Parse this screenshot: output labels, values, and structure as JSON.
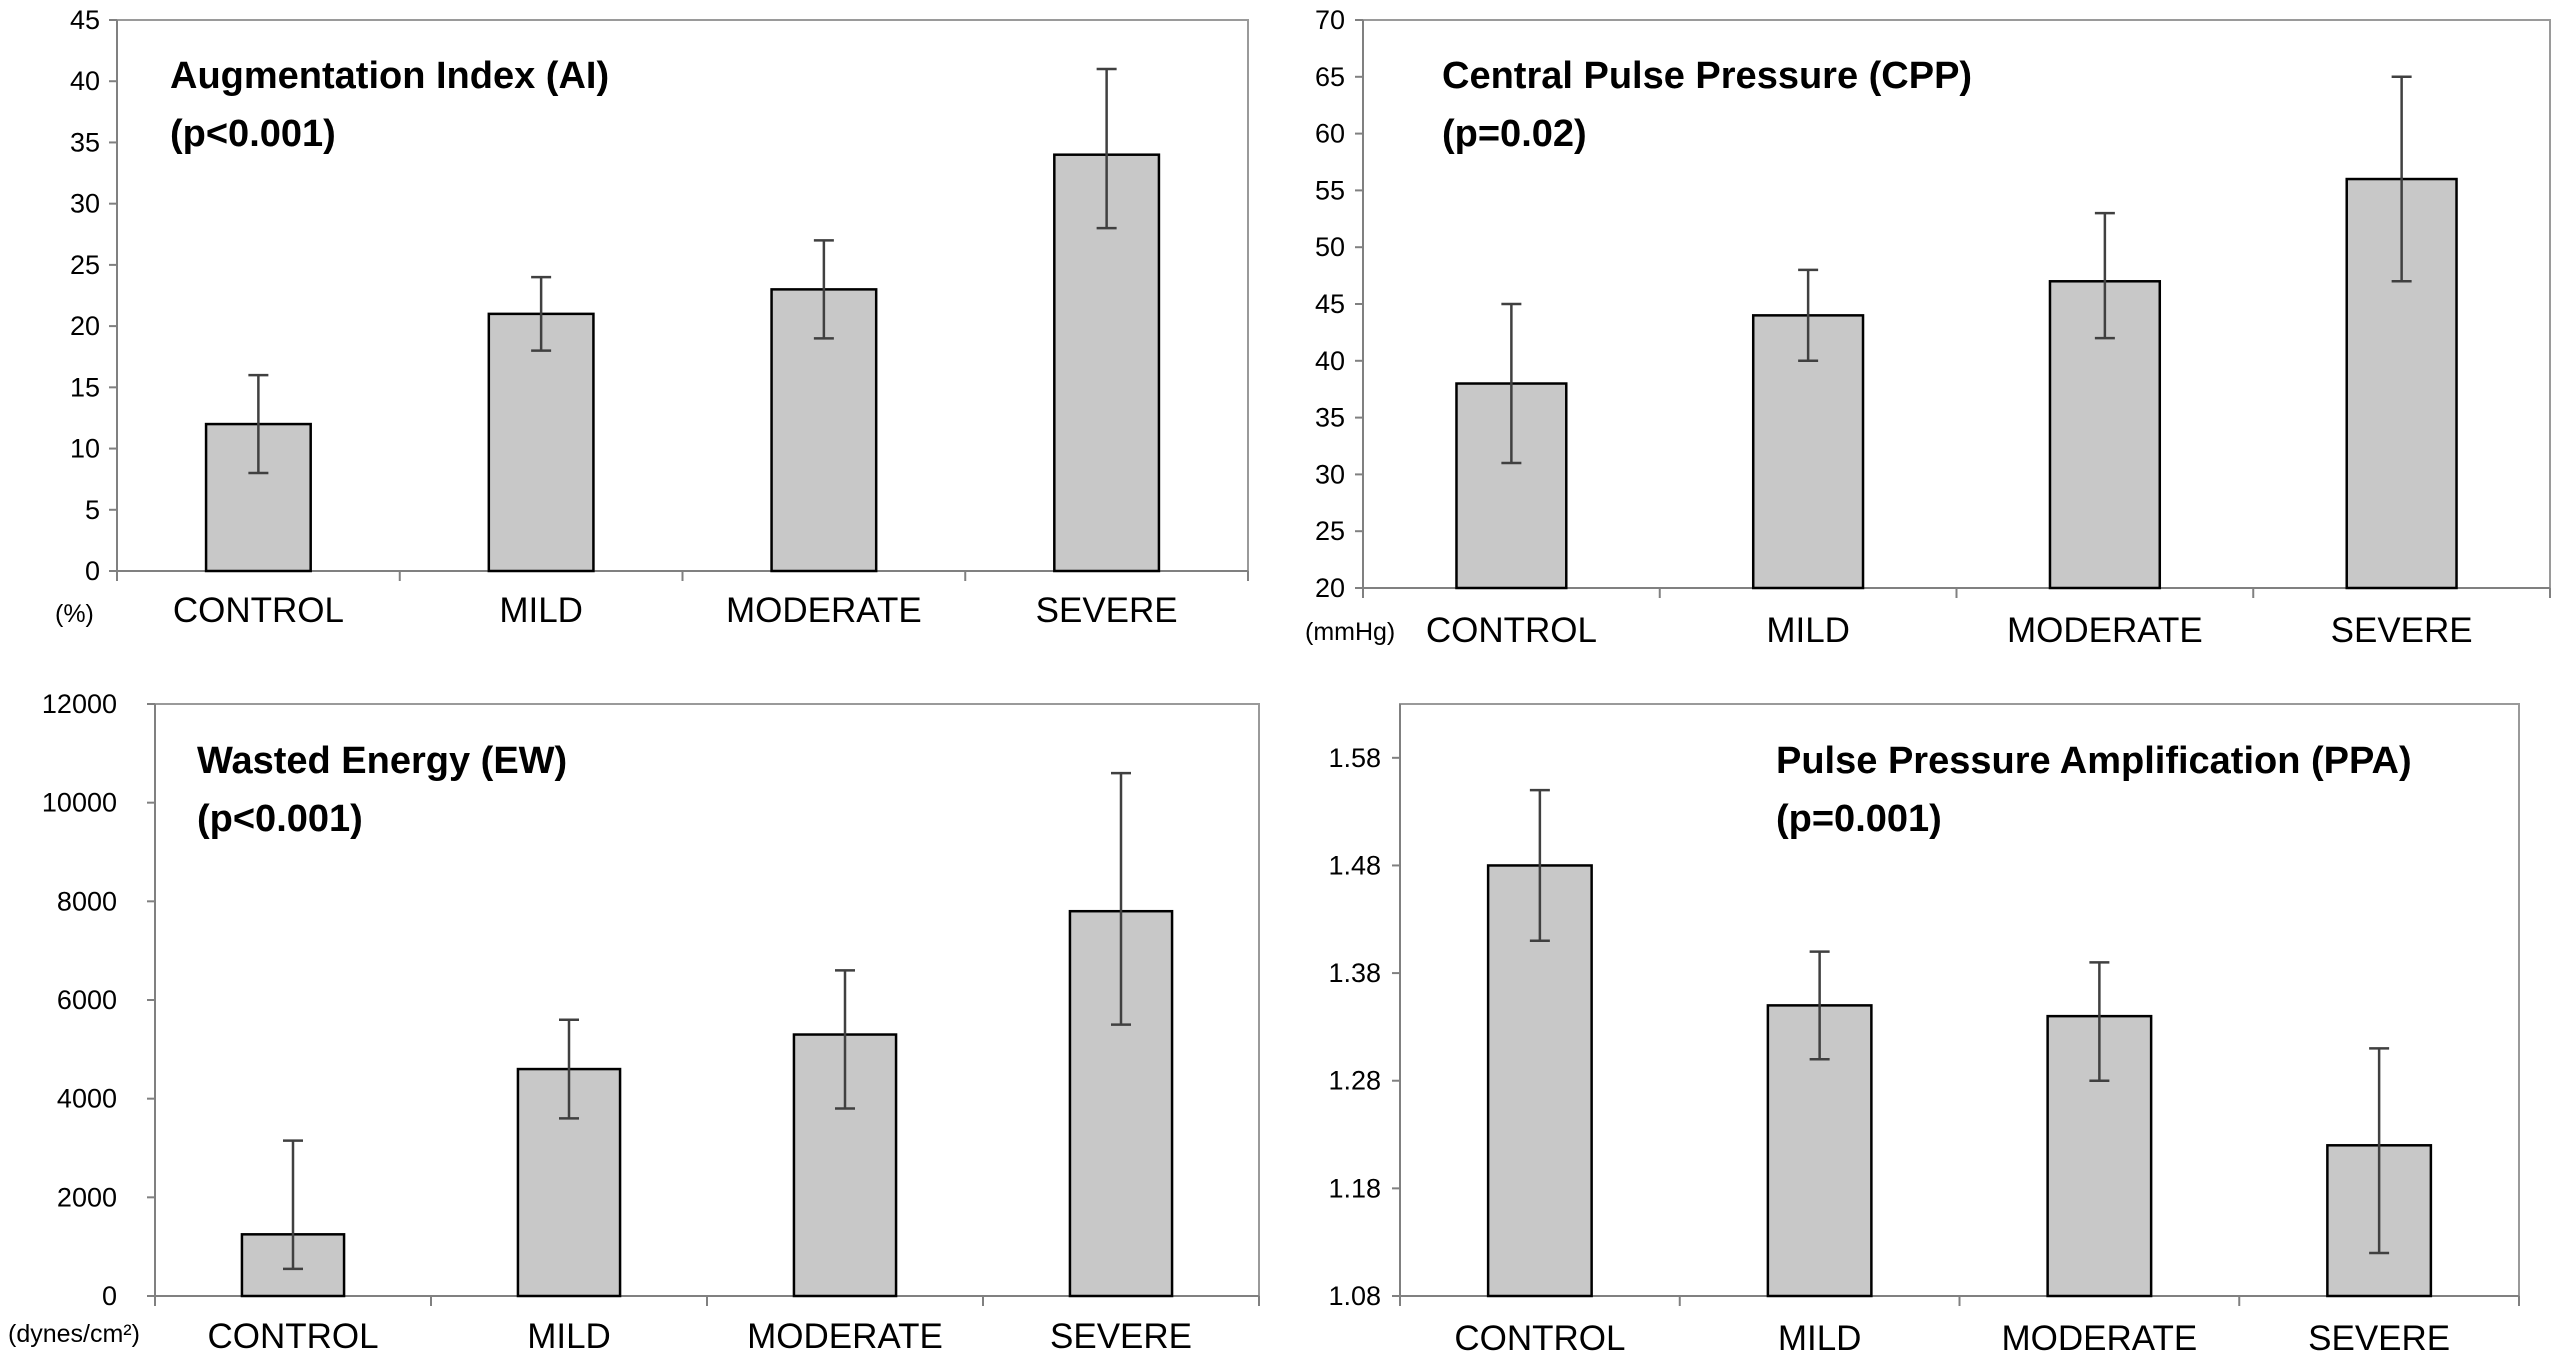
{
  "chart_data": [
    {
      "type": "bar",
      "title": "Augmentation Index (AI)",
      "subtitle": "(p<0.001)",
      "unit_label": "(%)",
      "categories": [
        "CONTROL",
        "MILD",
        "MODERATE",
        "SEVERE"
      ],
      "values": [
        12,
        21,
        23,
        34
      ],
      "error_low": [
        8,
        18,
        19,
        28
      ],
      "error_high": [
        16,
        24,
        27,
        41
      ],
      "ylim": [
        0,
        45
      ],
      "yticks": [
        "0",
        "5",
        "10",
        "15",
        "20",
        "25",
        "30",
        "35",
        "40",
        "45"
      ],
      "bar_color": "#c8c8c8",
      "grid": false
    },
    {
      "type": "bar",
      "title": "Central Pulse Pressure (CPP)",
      "subtitle": "(p=0.02)",
      "unit_label": "(mmHg)",
      "categories": [
        "CONTROL",
        "MILD",
        "MODERATE",
        "SEVERE"
      ],
      "values": [
        38,
        44,
        47,
        56
      ],
      "error_low": [
        31,
        40,
        42,
        47
      ],
      "error_high": [
        45,
        48,
        53,
        65
      ],
      "ylim": [
        20,
        70
      ],
      "yticks": [
        "20",
        "25",
        "30",
        "35",
        "40",
        "45",
        "50",
        "55",
        "60",
        "65",
        "70"
      ],
      "bar_color": "#c8c8c8",
      "grid": false
    },
    {
      "type": "bar",
      "title": "Wasted Energy (EW)",
      "subtitle": "(p<0.001)",
      "unit_label": "(dynes/cm²)",
      "categories": [
        "CONTROL",
        "MILD",
        "MODERATE",
        "SEVERE"
      ],
      "values": [
        1250,
        4600,
        5300,
        7800
      ],
      "error_low": [
        550,
        3600,
        3800,
        5500
      ],
      "error_high": [
        3150,
        5600,
        6600,
        10600
      ],
      "ylim": [
        0,
        12000
      ],
      "yticks": [
        "0",
        "2000",
        "4000",
        "6000",
        "8000",
        "10000",
        "12000"
      ],
      "bar_color": "#c8c8c8",
      "grid": false
    },
    {
      "type": "bar",
      "title": "Pulse Pressure Amplification (PPA)",
      "subtitle": "(p=0.001)",
      "unit_label": "",
      "categories": [
        "CONTROL",
        "MILD",
        "MODERATE",
        "SEVERE"
      ],
      "values": [
        1.48,
        1.35,
        1.34,
        1.22
      ],
      "error_low": [
        1.41,
        1.3,
        1.28,
        1.12
      ],
      "error_high": [
        1.55,
        1.4,
        1.39,
        1.31
      ],
      "ylim": [
        1.08,
        1.63
      ],
      "yticks": [
        "1.08",
        "1.18",
        "1.28",
        "1.38",
        "1.48",
        "1.58"
      ],
      "bar_color": "#c8c8c8",
      "grid": false
    }
  ]
}
